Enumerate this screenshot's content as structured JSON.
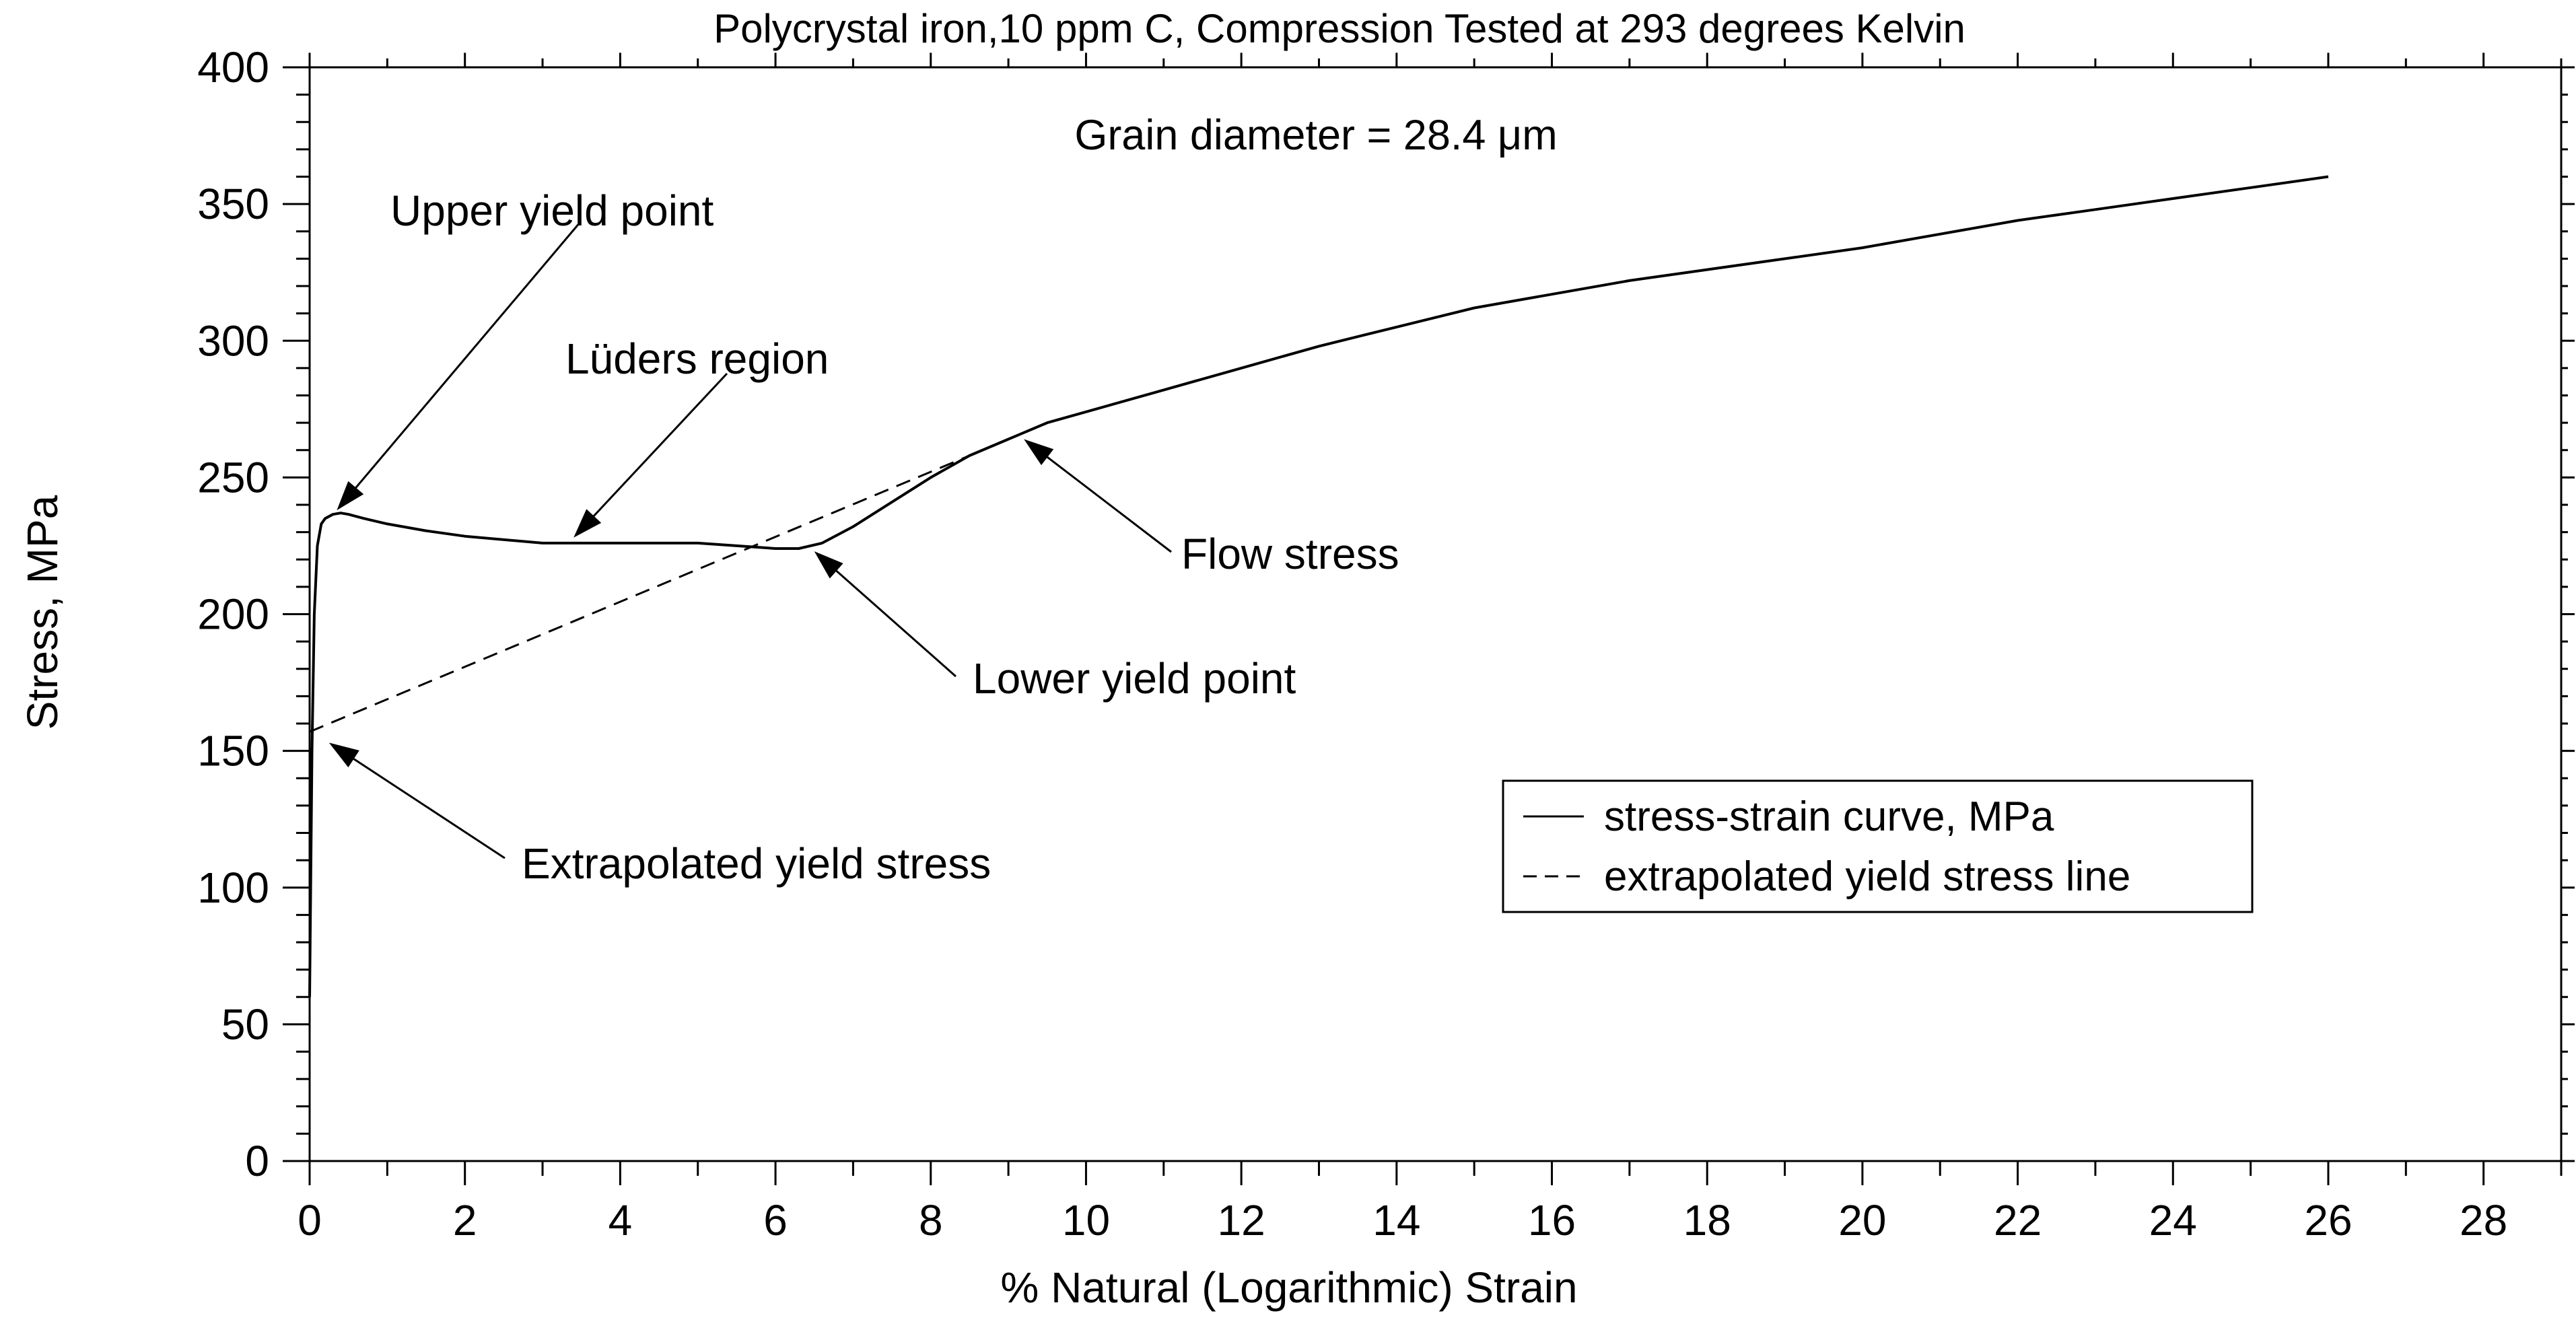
{
  "chart_data": {
    "type": "line",
    "title": "Polycrystal iron,10 ppm C, Compression Tested at 293 degrees Kelvin",
    "subtitle": "Grain diameter = 28.4 μm",
    "xlabel": "% Natural (Logarithmic) Strain",
    "ylabel": "Stress, MPa",
    "xlim": [
      0,
      29
    ],
    "ylim": [
      0,
      400
    ],
    "xticks": [
      0,
      2,
      4,
      6,
      8,
      10,
      12,
      14,
      16,
      18,
      20,
      22,
      24,
      26,
      28
    ],
    "yticks": [
      0,
      50,
      100,
      150,
      200,
      250,
      300,
      350,
      400
    ],
    "grid": false,
    "legend_position": "lower-right",
    "series": [
      {
        "name": "stress-strain curve, MPa",
        "style": "solid",
        "x": [
          0,
          0.03,
          0.06,
          0.1,
          0.15,
          0.2,
          0.3,
          0.4,
          0.5,
          0.7,
          1.0,
          1.5,
          2.0,
          3.0,
          4.0,
          5.0,
          5.5,
          6.0,
          6.3,
          6.6,
          7.0,
          7.5,
          8.0,
          8.5,
          9.0,
          9.5,
          10.0,
          11.0,
          12.0,
          13.0,
          14.0,
          15.0,
          16.0,
          17.0,
          18.0,
          19.0,
          20.0,
          21.0,
          22.0,
          23.0,
          24.0,
          25.0,
          26.0
        ],
        "y": [
          60,
          150,
          200,
          225,
          233,
          235,
          236.5,
          237,
          236.5,
          235,
          233,
          230.5,
          228.5,
          226,
          226,
          226,
          225,
          224,
          224,
          226,
          232,
          241,
          250,
          258,
          264,
          270,
          274,
          282,
          290,
          298,
          305,
          312,
          317,
          322,
          326,
          330,
          334,
          339,
          344,
          348,
          352,
          356,
          360
        ]
      },
      {
        "name": "extrapolated yield stress line",
        "style": "dashed",
        "x": [
          0,
          8.5
        ],
        "y": [
          157,
          258
        ]
      }
    ],
    "annotations": [
      {
        "id": "upper-yield",
        "text": "Upper yield point",
        "point": [
          0.35,
          238
        ]
      },
      {
        "id": "luders",
        "text": "Lüders region",
        "point": [
          3.4,
          228
        ]
      },
      {
        "id": "flow-stress",
        "text": "Flow stress",
        "point": [
          9.2,
          264
        ]
      },
      {
        "id": "lower-yield",
        "text": "Lower yield point",
        "point": [
          6.5,
          223
        ]
      },
      {
        "id": "extrapolated",
        "text": "Extrapolated yield stress",
        "point": [
          0.25,
          153
        ]
      }
    ]
  }
}
